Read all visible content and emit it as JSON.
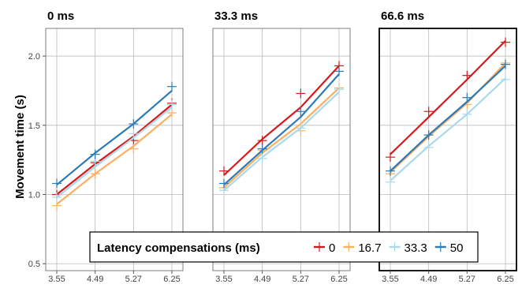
{
  "chart_data": {
    "type": "line",
    "ylabel": "Movement time (s)",
    "xlabel": "",
    "x_ticks": [
      "3.55",
      "4.49",
      "5.27",
      "6.25"
    ],
    "x": [
      3.55,
      4.49,
      5.27,
      6.25
    ],
    "ylim": [
      0.45,
      2.2
    ],
    "y_ticks": [
      0.5,
      1.0,
      1.5,
      2.0
    ],
    "y_tick_labels": [
      "0.5",
      "1.0",
      "1.5",
      "2.0"
    ],
    "legend": {
      "title": "Latency compensations (ms)",
      "placement": "bottom-center",
      "labels": [
        "0",
        "16.7",
        "33.3",
        "50"
      ]
    },
    "colors": {
      "0": "#d7191c",
      "16.7": "#fdae61",
      "33.3": "#abd9e9",
      "50": "#2c7bb6"
    },
    "grid": true,
    "panels": [
      {
        "title": "0 ms",
        "highlighted": false,
        "series": [
          {
            "name": "0",
            "points": [
              1.0,
              1.23,
              1.39,
              1.66
            ],
            "fit": [
              1.0,
              1.22,
              1.42,
              1.65
            ]
          },
          {
            "name": "16.7",
            "points": [
              0.92,
              1.15,
              1.33,
              1.59
            ],
            "fit": [
              0.93,
              1.15,
              1.35,
              1.58
            ]
          },
          {
            "name": "33.3",
            "points": [
              0.98,
              1.24,
              1.44,
              1.65
            ],
            "fit": [
              0.98,
              1.2,
              1.41,
              1.63
            ]
          },
          {
            "name": "50",
            "points": [
              1.08,
              1.29,
              1.51,
              1.78
            ],
            "fit": [
              1.07,
              1.3,
              1.51,
              1.75
            ]
          }
        ]
      },
      {
        "title": "33.3 ms",
        "highlighted": false,
        "series": [
          {
            "name": "0",
            "points": [
              1.17,
              1.39,
              1.73,
              1.93
            ],
            "fit": [
              1.14,
              1.4,
              1.63,
              1.93
            ]
          },
          {
            "name": "16.7",
            "points": [
              1.05,
              1.32,
              1.46,
              1.77
            ],
            "fit": [
              1.05,
              1.3,
              1.51,
              1.77
            ]
          },
          {
            "name": "33.3",
            "points": [
              1.03,
              1.26,
              1.48,
              1.76
            ],
            "fit": [
              1.03,
              1.27,
              1.48,
              1.74
            ]
          },
          {
            "name": "50",
            "points": [
              1.08,
              1.33,
              1.6,
              1.89
            ],
            "fit": [
              1.07,
              1.32,
              1.56,
              1.87
            ]
          }
        ]
      },
      {
        "title": "66.6 ms",
        "highlighted": true,
        "series": [
          {
            "name": "0",
            "points": [
              1.27,
              1.6,
              1.86,
              2.1
            ],
            "fit": [
              1.29,
              1.56,
              1.83,
              2.11
            ]
          },
          {
            "name": "16.7",
            "points": [
              1.15,
              1.43,
              1.65,
              1.95
            ],
            "fit": [
              1.16,
              1.42,
              1.66,
              1.95
            ]
          },
          {
            "name": "33.3",
            "points": [
              1.09,
              1.34,
              1.58,
              1.83
            ],
            "fit": [
              1.1,
              1.35,
              1.58,
              1.84
            ]
          },
          {
            "name": "50",
            "points": [
              1.17,
              1.43,
              1.7,
              1.94
            ],
            "fit": [
              1.17,
              1.43,
              1.67,
              1.93
            ]
          }
        ]
      }
    ]
  }
}
